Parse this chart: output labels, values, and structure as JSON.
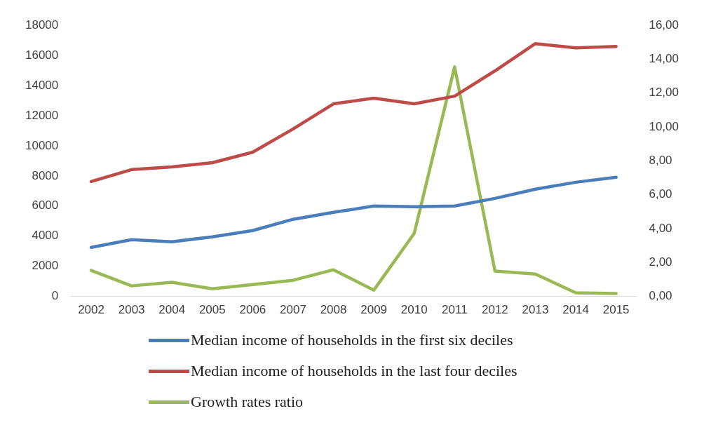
{
  "chart_data": {
    "type": "line",
    "categories": [
      "2002",
      "2003",
      "2004",
      "2005",
      "2006",
      "2007",
      "2008",
      "2009",
      "2010",
      "2011",
      "2012",
      "2013",
      "2014",
      "2015"
    ],
    "series": [
      {
        "name": "Median income of households in the first six deciles",
        "color": "#4a7ebb",
        "values": [
          3250,
          3770,
          3630,
          3950,
          4370,
          5120,
          5580,
          6000,
          5950,
          6000,
          6510,
          7120,
          7580,
          7910
        ]
      },
      {
        "name": "Median income of households in the last four deciles",
        "color": "#be4b48",
        "values": [
          7630,
          8420,
          8600,
          8880,
          9580,
          11120,
          12790,
          13160,
          12790,
          13300,
          14980,
          16790,
          16510,
          16600
        ]
      },
      {
        "name": "Growth rates ratio",
        "color": "#98b954",
        "axis": "y2",
        "values": [
          1.53,
          0.62,
          0.83,
          0.45,
          0.7,
          0.95,
          1.57,
          0.37,
          3.72,
          13.55,
          1.49,
          1.32,
          0.21,
          0.17
        ]
      }
    ],
    "ylim": [
      0,
      18000
    ],
    "yticks": [
      0,
      2000,
      4000,
      6000,
      8000,
      10000,
      12000,
      14000,
      16000,
      18000
    ],
    "y2lim": [
      0,
      16
    ],
    "y2ticks": [
      {
        "value": 0,
        "label": "0,00"
      },
      {
        "value": 2,
        "label": "2,00"
      },
      {
        "value": 4,
        "label": "4,00"
      },
      {
        "value": 6,
        "label": "6,00"
      },
      {
        "value": 8,
        "label": "8,00"
      },
      {
        "value": 10,
        "label": "10,00"
      },
      {
        "value": 12,
        "label": "12,00"
      },
      {
        "value": 14,
        "label": "14,00"
      },
      {
        "value": 16,
        "label": "16,00"
      }
    ],
    "grid": false,
    "legend": "bottom",
    "marker": "none",
    "line_style": "solid"
  }
}
